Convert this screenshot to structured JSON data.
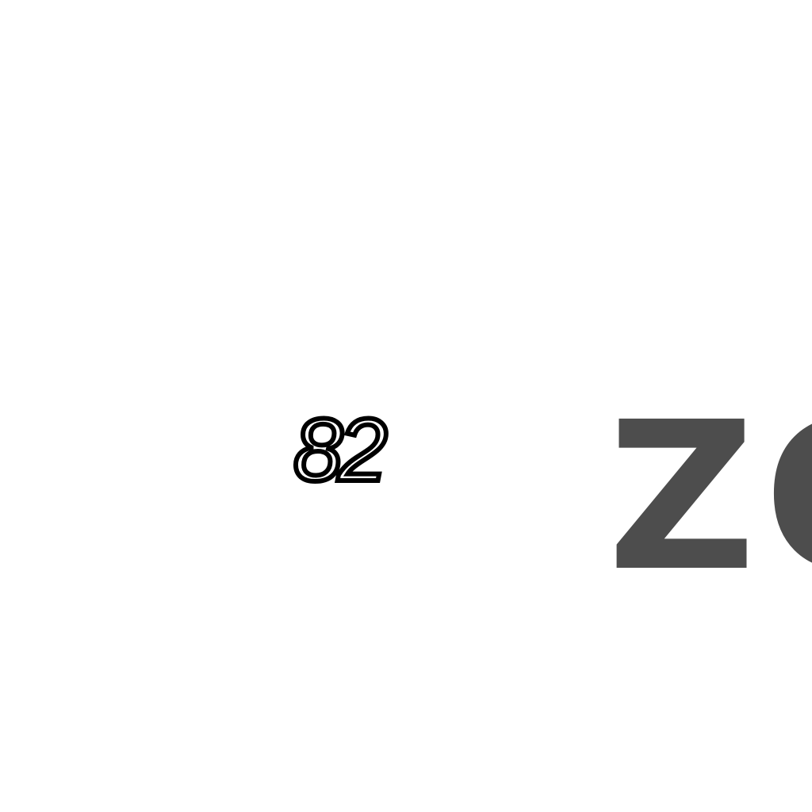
{
  "number_label": "82",
  "brand_text": "ZO",
  "colors": {
    "background": "#ffffff",
    "number": "#000000",
    "brand": "#4d4d4d"
  }
}
